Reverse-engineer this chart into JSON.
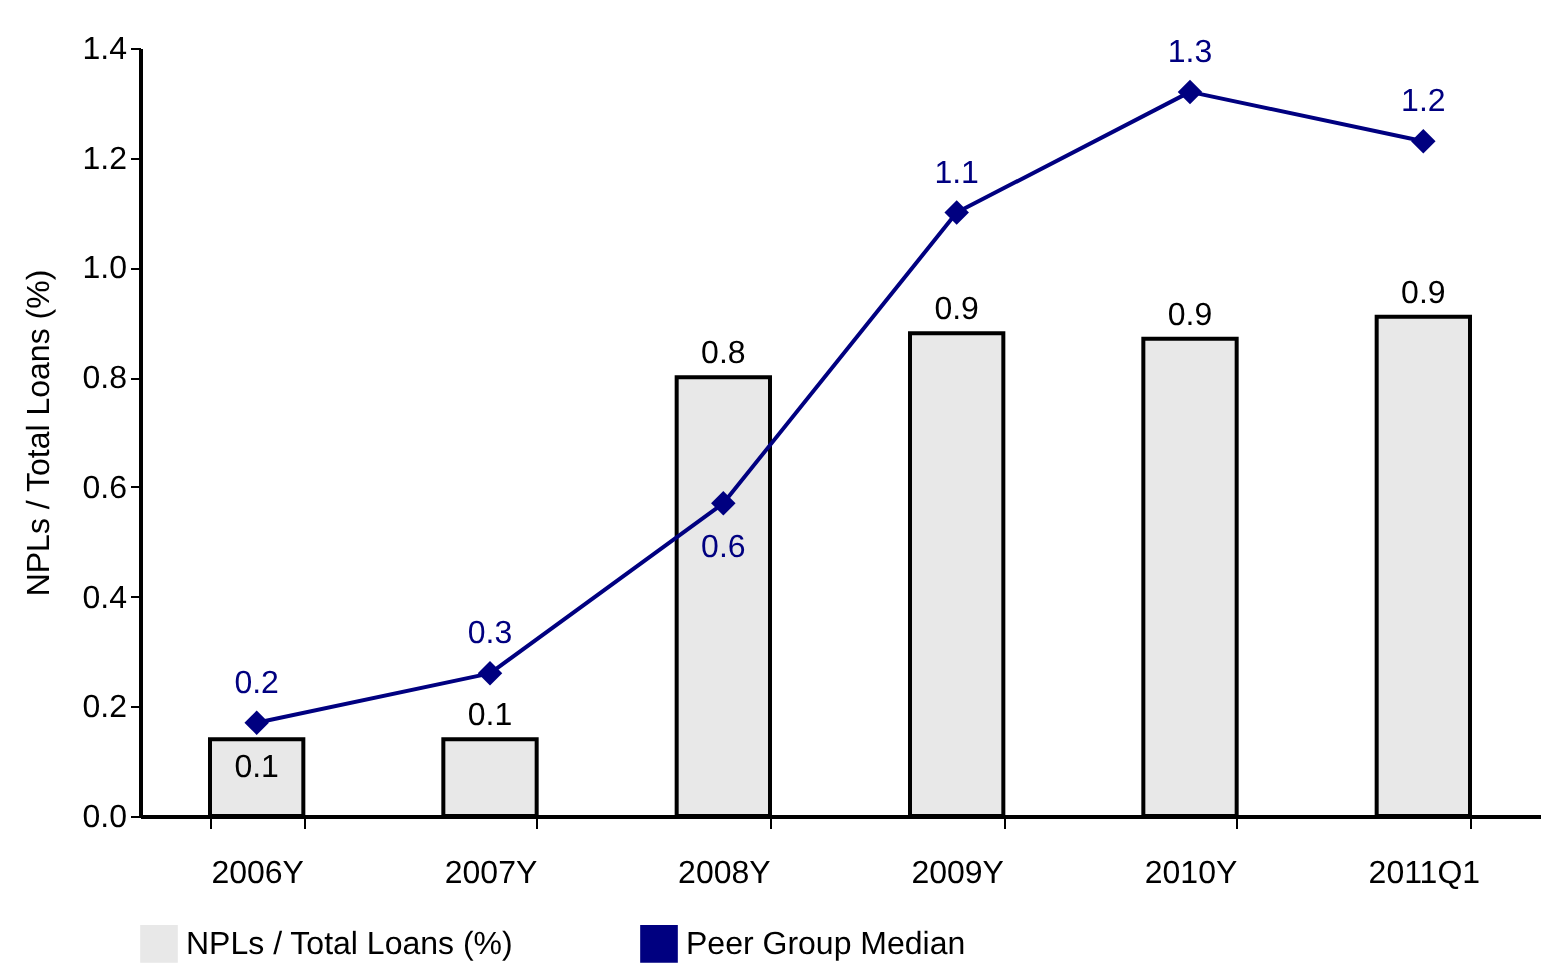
{
  "chart_data": {
    "type": "bar",
    "ylabel": "NPLs / Total Loans (%)",
    "categories": [
      "2006Y",
      "2007Y",
      "2008Y",
      "2009Y",
      "2010Y",
      "2011Q1"
    ],
    "series": [
      {
        "name": "NPLs / Total Loans (%)",
        "color": "#e8e8e8",
        "values": [
          0.14,
          0.14,
          0.8,
          0.88,
          0.87,
          0.91
        ],
        "value_labels": [
          "0.1",
          "0.1",
          "0.8",
          "0.9",
          "0.9",
          "0.9"
        ]
      },
      {
        "name": "Peer Group Median",
        "type": "line",
        "color": "#000080",
        "marker": "diamond",
        "values": [
          0.17,
          0.26,
          0.57,
          1.1,
          1.32,
          1.23
        ],
        "value_labels": [
          "0.2",
          "0.3",
          "0.6",
          "1.1",
          "1.3",
          "1.2"
        ]
      }
    ],
    "ylim": [
      0,
      1.4
    ],
    "yticks": [
      {
        "value": 0,
        "label": "0.0"
      },
      {
        "value": 0.2,
        "label": "0.2"
      },
      {
        "value": 0.4,
        "label": "0.4"
      },
      {
        "value": 0.6,
        "label": "0.6"
      },
      {
        "value": 0.8,
        "label": "0.8"
      },
      {
        "value": 1.0,
        "label": "1.0"
      },
      {
        "value": 1.2,
        "label": "1.2"
      },
      {
        "value": 1.4,
        "label": "1.4"
      }
    ],
    "grid": false,
    "legend": "bottom"
  }
}
